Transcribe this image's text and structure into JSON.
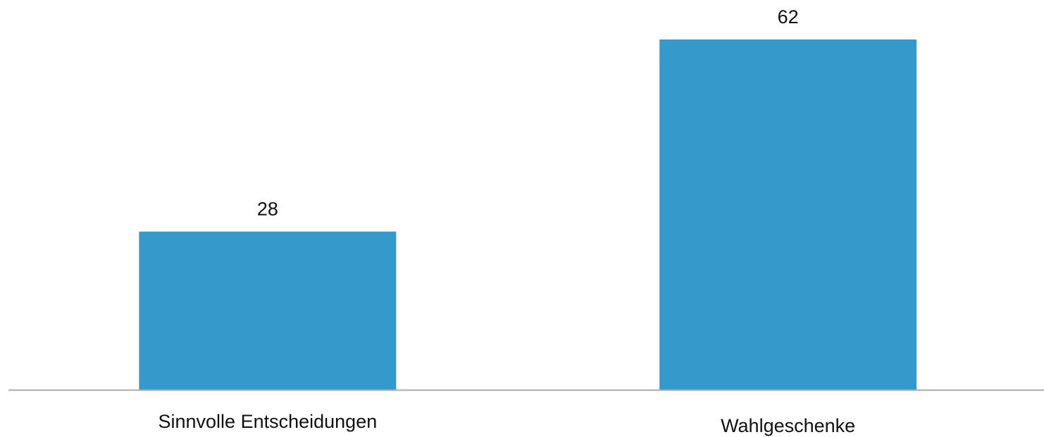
{
  "chart_data": {
    "type": "bar",
    "categories": [
      "Sinnvolle Entscheidungen",
      "Wahlgeschenke"
    ],
    "values": [
      28,
      62
    ],
    "color": "#3599cc"
  }
}
